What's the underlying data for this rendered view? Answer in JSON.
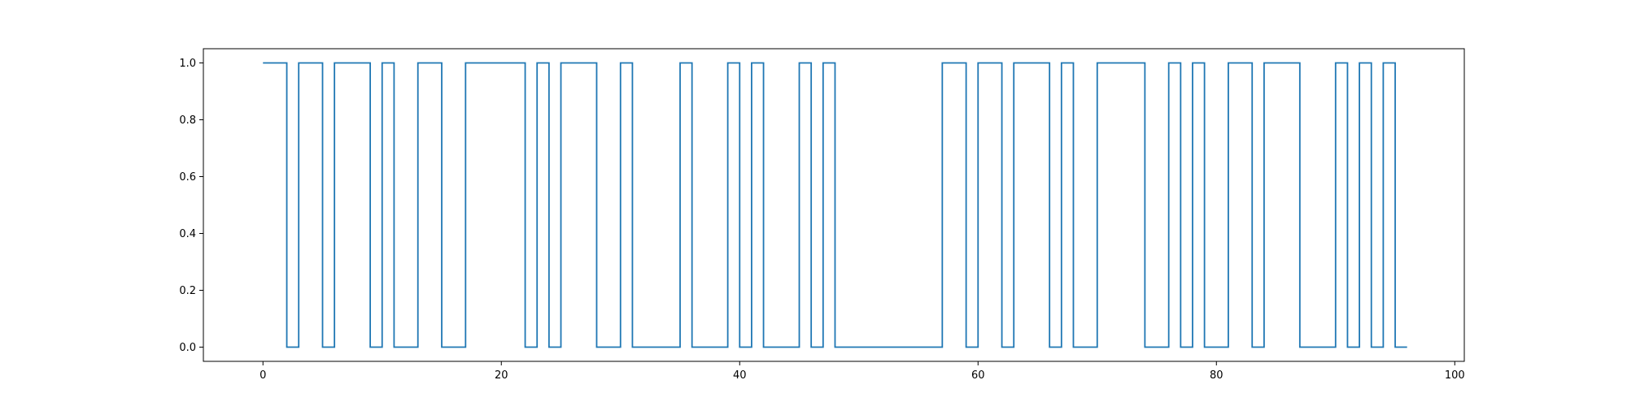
{
  "chart_data": {
    "type": "line",
    "title": "",
    "xlabel": "",
    "ylabel": "",
    "step": "post",
    "xlim": [
      -5,
      100.8
    ],
    "ylim": [
      -0.05,
      1.05
    ],
    "xticks": [
      0,
      20,
      40,
      60,
      80,
      100
    ],
    "yticks": [
      0.0,
      0.2,
      0.4,
      0.6,
      0.8,
      1.0
    ],
    "xtick_labels": [
      "0",
      "20",
      "40",
      "60",
      "80",
      "100"
    ],
    "ytick_labels": [
      "0.0",
      "0.2",
      "0.4",
      "0.6",
      "0.8",
      "1.0"
    ],
    "grid": false,
    "line_color": "#1f77b4",
    "series": [
      {
        "x": [
          0,
          1,
          2,
          3,
          4,
          5,
          6,
          7,
          8,
          9,
          10,
          11,
          12,
          13,
          14,
          15,
          16,
          17,
          18,
          19,
          20,
          21,
          22,
          23,
          24,
          25,
          26,
          27,
          28,
          29,
          30,
          31,
          32,
          33,
          34,
          35,
          36,
          37,
          38,
          39,
          40,
          41,
          42,
          43,
          44,
          45,
          46,
          47,
          48,
          49,
          50,
          51,
          52,
          53,
          54,
          55,
          56,
          57,
          58,
          59,
          60,
          61,
          62,
          63,
          64,
          65,
          66,
          67,
          68,
          69,
          70,
          71,
          72,
          73,
          74,
          75,
          76,
          77,
          78,
          79,
          80,
          81,
          82,
          83,
          84,
          85,
          86,
          87,
          88,
          89,
          90,
          91,
          92,
          93,
          94,
          95,
          96
        ],
        "values": [
          1,
          1,
          0,
          1,
          1,
          0,
          1,
          1,
          1,
          0,
          1,
          0,
          0,
          1,
          1,
          0,
          0,
          1,
          1,
          1,
          1,
          1,
          0,
          1,
          0,
          1,
          1,
          1,
          0,
          0,
          1,
          0,
          0,
          0,
          0,
          1,
          0,
          0,
          0,
          1,
          0,
          1,
          0,
          0,
          0,
          1,
          0,
          1,
          0,
          0,
          0,
          0,
          0,
          0,
          0,
          0,
          0,
          1,
          1,
          0,
          1,
          1,
          0,
          1,
          1,
          1,
          0,
          1,
          0,
          0,
          1,
          1,
          1,
          1,
          0,
          0,
          1,
          0,
          1,
          0,
          0,
          1,
          1,
          0,
          1,
          1,
          1,
          0,
          0,
          0,
          1,
          0,
          1,
          0,
          1,
          0,
          0
        ]
      }
    ]
  }
}
